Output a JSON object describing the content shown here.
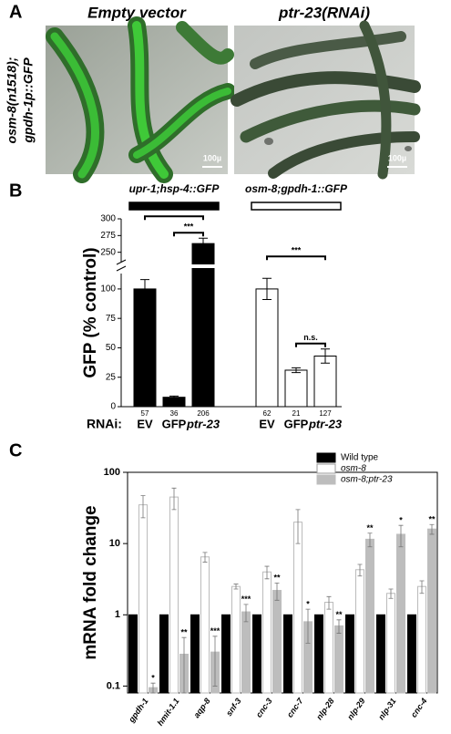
{
  "figure": {
    "panel_label": "A",
    "row_label": [
      "osm-8(n1518);",
      "gpdh-1p::GFP"
    ],
    "columns": [
      "Empty vector",
      "ptr-23(RNAi)"
    ],
    "scale_bar": "100µ"
  },
  "chart_data": [
    {
      "type": "bar",
      "panel_label": "B",
      "ylabel": "GFP (% control)",
      "x_label": "RNAi:",
      "categories": [
        "EV",
        "GFP",
        "ptr-23",
        "EV",
        "GFP",
        "ptr-23"
      ],
      "series": [
        {
          "name": "upr-1;hsp-4::GFP",
          "color": "#000000",
          "values": [
            100,
            8,
            263,
            null,
            null,
            null
          ],
          "errors": [
            8,
            1,
            8,
            null,
            null,
            null
          ]
        },
        {
          "name": "osm-8;gpdh-1::GFP",
          "color": "#ffffff",
          "values": [
            null,
            null,
            null,
            100,
            31,
            43
          ],
          "errors": [
            null,
            null,
            null,
            9,
            2,
            6
          ]
        }
      ],
      "sample_sizes": [
        57,
        36,
        206,
        62,
        21,
        127
      ],
      "ylim": [
        0,
        300
      ],
      "ybreak": [
        110,
        240
      ],
      "yticks": [
        0,
        25,
        50,
        75,
        100,
        250,
        275,
        300
      ],
      "significance": [
        {
          "from": 0,
          "to": 2,
          "label": "***"
        },
        {
          "from": 1,
          "to": 2,
          "label": "***"
        },
        {
          "from": 3,
          "to": 5,
          "label": "***"
        },
        {
          "from": 4,
          "to": 5,
          "label": "n.s."
        }
      ]
    },
    {
      "type": "bar",
      "panel_label": "C",
      "ylabel": "mRNA fold change",
      "log_y": true,
      "categories": [
        "gpdh-1",
        "hmit-1.1",
        "aqp-8",
        "snf-3",
        "cnc-3",
        "cnc-7",
        "nlp-28",
        "nlp-29",
        "nlp-31",
        "cnc-4"
      ],
      "series": [
        {
          "name": "Wild type",
          "color": "#000000",
          "values": [
            1,
            1,
            1,
            1,
            1,
            1,
            1,
            1,
            1,
            1
          ],
          "errors": [
            0,
            0,
            0,
            0,
            0,
            0,
            0,
            0,
            0,
            0
          ]
        },
        {
          "name": "osm-8",
          "color": "#ffffff",
          "values": [
            35,
            45,
            6.5,
            2.5,
            4,
            20,
            1.5,
            4.3,
            2,
            2.5
          ],
          "errors": [
            12,
            15,
            1,
            0.2,
            0.8,
            10,
            0.3,
            0.8,
            0.3,
            0.5
          ]
        },
        {
          "name": "osm-8;ptr-23",
          "color": "#bdbdbd",
          "values": [
            0.095,
            0.28,
            0.3,
            1.1,
            2.2,
            0.8,
            0.7,
            11.5,
            13.5,
            16
          ],
          "errors": [
            0.015,
            0.2,
            0.2,
            0.3,
            0.6,
            0.4,
            0.15,
            2.5,
            4.5,
            2.5
          ]
        }
      ],
      "significance_labels": [
        "*",
        "**",
        "***",
        "***",
        "**",
        "*",
        "**",
        "**",
        "*",
        "**"
      ],
      "ylim": [
        0.08,
        100
      ],
      "yticks": [
        0.1,
        1,
        10,
        100
      ],
      "legend": "upper right"
    }
  ]
}
